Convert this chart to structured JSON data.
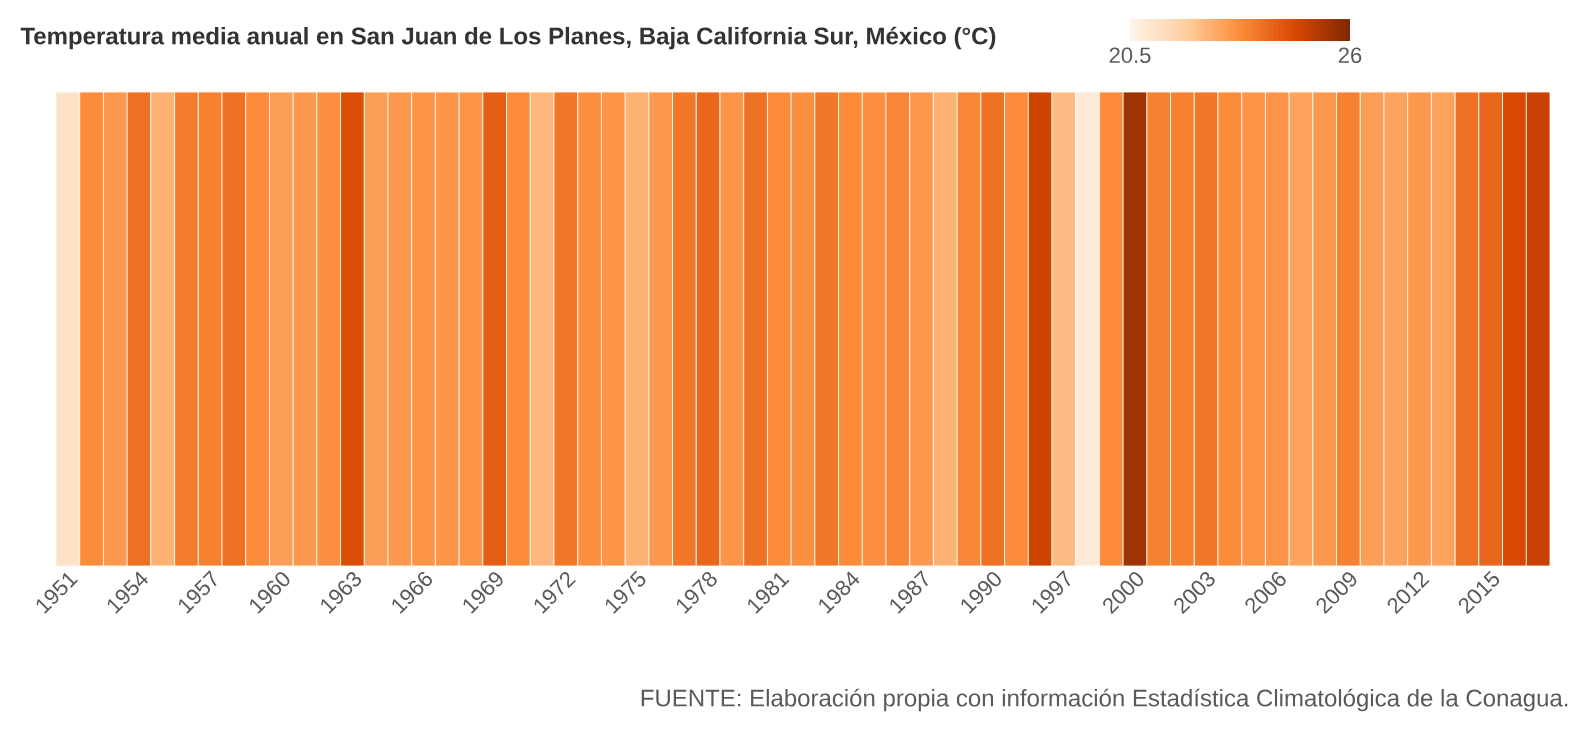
{
  "chart_data": {
    "type": "heatmap",
    "title": "Temperatura media anual en San Juan de Los Planes, Baja California Sur, México (°C)",
    "categories": [
      "1951",
      null,
      null,
      "1954",
      null,
      null,
      "1957",
      null,
      null,
      "1960",
      null,
      null,
      "1963",
      null,
      null,
      "1966",
      null,
      null,
      "1969",
      null,
      null,
      "1972",
      null,
      null,
      "1975",
      null,
      null,
      "1978",
      null,
      null,
      "1981",
      null,
      null,
      "1984",
      null,
      null,
      "1987",
      null,
      null,
      "1990",
      null,
      null,
      "1997",
      null,
      null,
      "2000",
      null,
      null,
      "2003",
      null,
      null,
      "2006",
      null,
      null,
      "2009",
      null,
      null,
      "2012",
      null,
      null,
      "2015",
      null,
      null
    ],
    "y_categories": [
      null
    ],
    "cells": [
      [
        21.2,
        23.3,
        23.0,
        23.8,
        22.5,
        23.6,
        23.5,
        23.8,
        23.3,
        22.9,
        23.0,
        23.2,
        24.5,
        22.9,
        23.0,
        23.1,
        23.1,
        23.1,
        24.2,
        23.3,
        22.4,
        23.7,
        23.2,
        23.1,
        22.5,
        23.0,
        23.7,
        24.0,
        23.1,
        23.8,
        23.3,
        23.2,
        23.7,
        23.3,
        23.2,
        23.4,
        23.0,
        22.5,
        23.4,
        23.8,
        23.3,
        24.8,
        22.3,
        20.9,
        23.3,
        25.5,
        23.5,
        23.5,
        23.7,
        23.3,
        23.1,
        23.1,
        22.8,
        23.0,
        23.5,
        22.9,
        22.8,
        23.0,
        22.8,
        23.8,
        24.0,
        24.6,
        24.9
      ]
    ],
    "clim": [
      20.5,
      26
    ],
    "cticks": [
      20.5,
      26
    ],
    "annotations": [
      "FUENTE: Elaboración propia con información Estadística Climatológica de la Conagua."
    ]
  }
}
